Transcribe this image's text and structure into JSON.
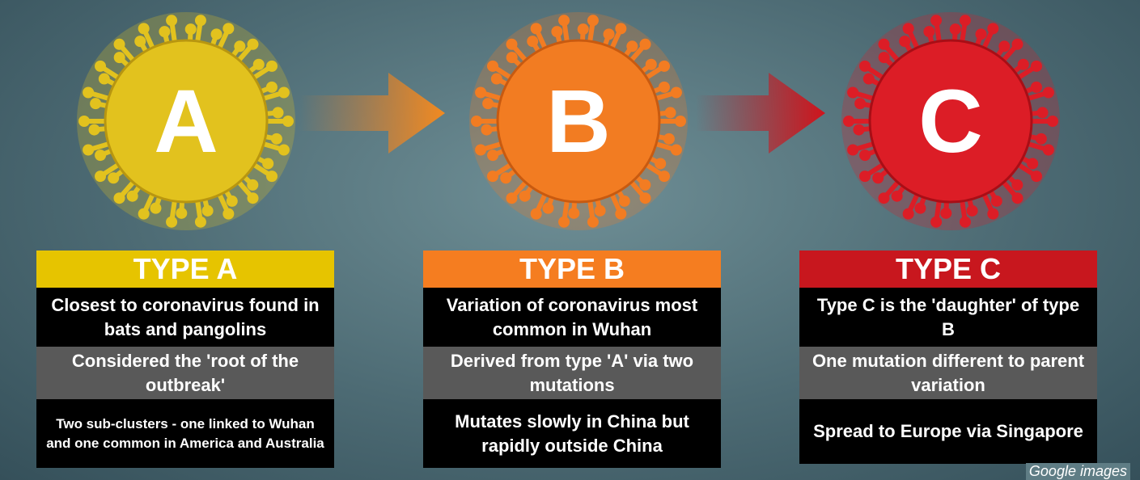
{
  "nodes": [
    {
      "letter": "A",
      "title": "TYPE A",
      "rows": [
        "Closest to coronavirus found in bats and pangolins",
        "Considered the 'root of the outbreak'",
        "Two sub-clusters - one linked to Wuhan and one common in America and Australia"
      ]
    },
    {
      "letter": "B",
      "title": "TYPE B",
      "rows": [
        "Variation of coronavirus most common in Wuhan",
        "Derived from type 'A' via two mutations",
        "Mutates slowly in China but rapidly outside China"
      ]
    },
    {
      "letter": "C",
      "title": "TYPE C",
      "rows": [
        "Type C is the 'daughter' of type B",
        "One mutation different to parent variation",
        "Spread to Europe via Singapore"
      ]
    }
  ],
  "credit": "Google images"
}
